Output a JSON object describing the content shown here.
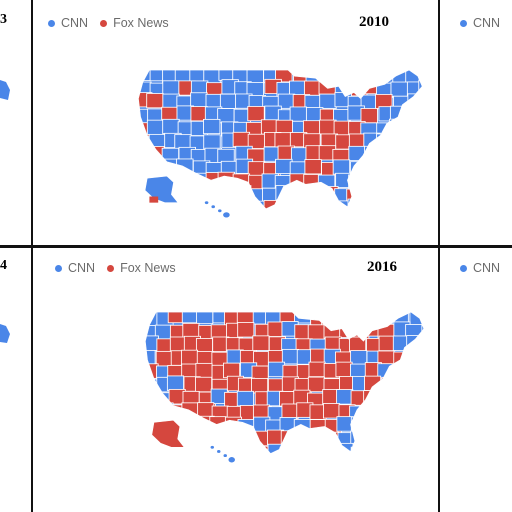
{
  "colors": {
    "cnn": "#4a86e8",
    "fox": "#d5473e",
    "border": "#ffffff",
    "frame": "#111111"
  },
  "legend": {
    "cnn": "CNN",
    "fox": "Fox News"
  },
  "panels": [
    {
      "year": "2010",
      "shows_legend_fox": true,
      "fox_share": 0.35
    },
    {
      "year": "2016",
      "shows_legend_fox": true,
      "fox_share": 0.65
    }
  ],
  "edge_panels": {
    "left_top_fragment": "3",
    "left_bottom_fragment": "4",
    "right_top_legend": "CNN",
    "right_bottom_legend": "CNN"
  }
}
